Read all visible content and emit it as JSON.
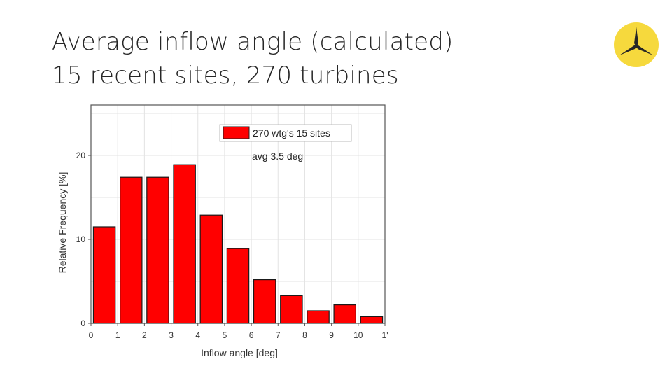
{
  "slide": {
    "title_line1": "Average inflow angle (calculated)",
    "title_line2": "15 recent sites, 270 turbines",
    "logo_icon": "turbine-logo-icon",
    "logo_color": "#f6d93d"
  },
  "chart_data": {
    "type": "bar",
    "x": [
      0.5,
      1.5,
      2.5,
      3.5,
      4.5,
      5.5,
      6.5,
      7.5,
      8.5,
      9.5,
      10.5
    ],
    "values": [
      11.5,
      17.4,
      17.4,
      18.9,
      12.9,
      8.9,
      5.2,
      3.3,
      1.5,
      2.2,
      0.8
    ],
    "xlabel": "Inflow angle [deg]",
    "ylabel": "Relative Frequency [%]",
    "xlim": [
      0,
      11
    ],
    "ylim": [
      0,
      26
    ],
    "x_ticks": [
      0,
      1,
      2,
      3,
      4,
      5,
      6,
      7,
      8,
      9,
      10,
      11
    ],
    "x_tick_labels": [
      "0",
      "1",
      "2",
      "3",
      "4",
      "5",
      "6",
      "7",
      "8",
      "9",
      "10",
      "1'"
    ],
    "y_ticks": [
      0,
      10,
      20
    ],
    "y_tick_labels": [
      "0",
      "10",
      "20"
    ],
    "legend": {
      "label": "270 wtg's 15 sites",
      "placement": "top-right"
    },
    "annotation": "avg 3.5 deg",
    "bar_color": "#ff0000",
    "grid": true
  }
}
